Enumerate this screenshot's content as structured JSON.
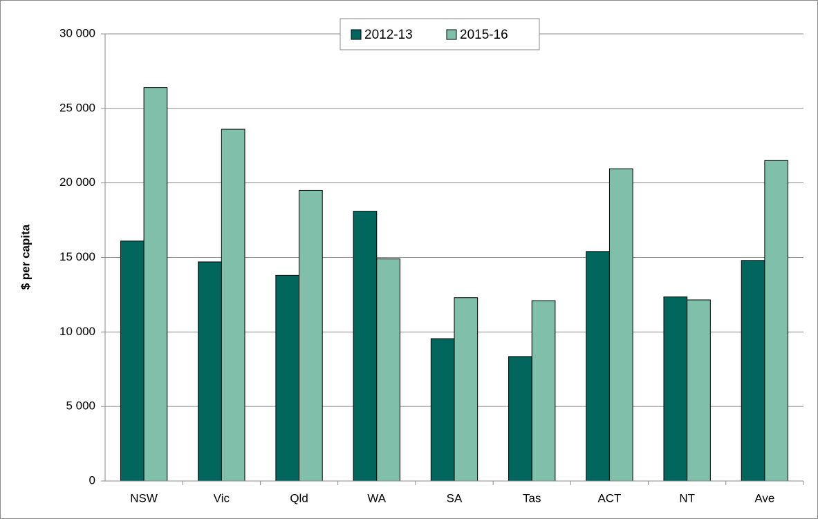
{
  "chart_data": {
    "type": "bar",
    "y_label": "$ per capita",
    "categories": [
      "NSW",
      "Vic",
      "Qld",
      "WA",
      "SA",
      "Tas",
      "ACT",
      "NT",
      "Ave"
    ],
    "series": [
      {
        "name": "2012-13",
        "color": "#00665e",
        "values": [
          16100,
          14700,
          13800,
          18100,
          9550,
          8350,
          15400,
          12350,
          14800
        ]
      },
      {
        "name": "2015-16",
        "color": "#80bfa9",
        "values": [
          26400,
          23600,
          19500,
          14900,
          12300,
          12100,
          20950,
          12150,
          21500
        ]
      }
    ],
    "ylim": [
      0,
      30000
    ],
    "yticks": [
      0,
      {
        "value": 5000,
        "label": "5 000"
      },
      {
        "value": 10000,
        "label": "10 000"
      },
      {
        "value": 15000,
        "label": "15 000"
      },
      {
        "value": 20000,
        "label": "20 000"
      },
      {
        "value": 25000,
        "label": "25 000"
      },
      {
        "value": 30000,
        "label": "30 000"
      }
    ],
    "grid": true,
    "legend": "top"
  }
}
